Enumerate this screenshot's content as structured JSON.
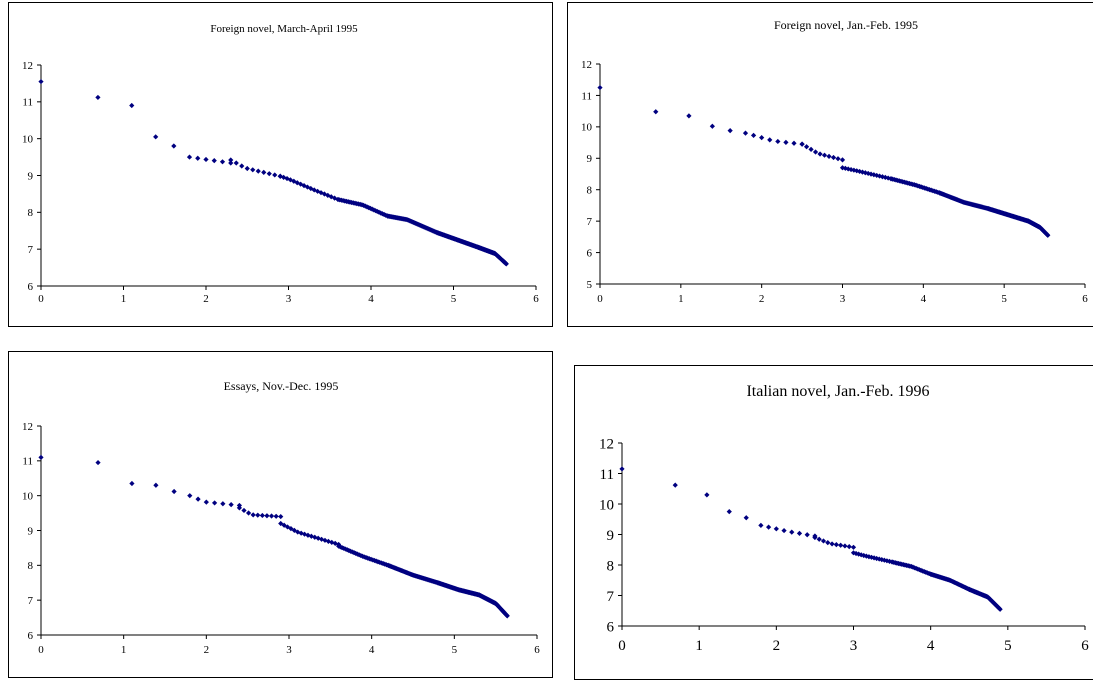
{
  "colors": {
    "marker": "#000080",
    "axis": "#000000"
  },
  "chart_data": [
    {
      "type": "scatter",
      "title": "Foreign novel, March-April 1995",
      "xlabel": "",
      "ylabel": "",
      "xlim": [
        0,
        6
      ],
      "ylim": [
        6,
        12
      ],
      "x_ticks": [
        "0",
        "1",
        "2",
        "3",
        "4",
        "5",
        "6"
      ],
      "y_ticks": [
        "6",
        "7",
        "8",
        "9",
        "10",
        "11",
        "12"
      ],
      "grid": false,
      "series": [
        {
          "values": [
            {
              "x": 0,
              "y": 11.55
            },
            {
              "x": 0.69,
              "y": 11.12
            },
            {
              "x": 1.1,
              "y": 10.9
            },
            {
              "x": 1.39,
              "y": 10.05
            },
            {
              "x": 1.61,
              "y": 9.8
            },
            {
              "xmin": 1.8,
              "xmax": 2.3,
              "points": 6,
              "knots": [
                [
                  0,
                  9.5
                ],
                [
                  0.5,
                  9.42
                ]
              ]
            },
            {
              "xmin": 2.3,
              "xmax": 2.9,
              "points": 10,
              "knots": [
                [
                  0,
                  9.42
                ],
                [
                  0.3,
                  9.2
                ],
                [
                  1,
                  8.98
                ]
              ]
            },
            {
              "xmin": 2.9,
              "xmax": 3.6,
              "points": 18,
              "knots": [
                [
                  0,
                  8.98
                ],
                [
                  0.15,
                  8.9
                ],
                [
                  0.6,
                  8.6
                ],
                [
                  1,
                  8.35
                ]
              ]
            },
            {
              "xmin": 3.6,
              "xmax": 4.2,
              "points": 30,
              "knots": [
                [
                  0,
                  8.35
                ],
                [
                  0.5,
                  8.2
                ],
                [
                  0.75,
                  8.05
                ],
                [
                  1,
                  7.9
                ]
              ]
            },
            {
              "xmin": 4.2,
              "xmax": 4.8,
              "points": 50,
              "knots": [
                [
                  0,
                  7.9
                ],
                [
                  0.4,
                  7.8
                ],
                [
                  1,
                  7.45
                ]
              ]
            },
            {
              "xmin": 4.8,
              "xmax": 5.3,
              "points": 70,
              "knots": [
                [
                  0,
                  7.45
                ],
                [
                  0.5,
                  7.25
                ],
                [
                  1,
                  7.05
                ]
              ]
            },
            {
              "xmin": 5.3,
              "xmax": 5.64,
              "points": 70,
              "knots": [
                [
                  0,
                  7.05
                ],
                [
                  0.6,
                  6.88
                ],
                [
                  1,
                  6.6
                ]
              ]
            }
          ]
        }
      ]
    },
    {
      "type": "scatter",
      "title": "Foreign novel, Jan.-Feb. 1995",
      "xlabel": "",
      "ylabel": "",
      "xlim": [
        0,
        6
      ],
      "ylim": [
        5,
        12
      ],
      "x_ticks": [
        "0",
        "1",
        "2",
        "3",
        "4",
        "5",
        "6"
      ],
      "y_ticks": [
        "5",
        "6",
        "7",
        "8",
        "9",
        "10",
        "11",
        "12"
      ],
      "grid": false,
      "series": [
        {
          "values": [
            {
              "x": 0,
              "y": 11.25
            },
            {
              "x": 0.69,
              "y": 10.48
            },
            {
              "x": 1.1,
              "y": 10.35
            },
            {
              "x": 1.39,
              "y": 10.02
            },
            {
              "x": 1.61,
              "y": 9.88
            },
            {
              "xmin": 1.8,
              "xmax": 2.5,
              "points": 8,
              "knots": [
                [
                  0,
                  9.8
                ],
                [
                  0.5,
                  9.55
                ],
                [
                  1,
                  9.45
                ]
              ]
            },
            {
              "xmin": 2.5,
              "xmax": 3.0,
              "points": 10,
              "knots": [
                [
                  0,
                  9.45
                ],
                [
                  0.4,
                  9.15
                ],
                [
                  1,
                  8.95
                ]
              ]
            },
            {
              "xmin": 3.0,
              "xmax": 3.6,
              "points": 18,
              "knots": [
                [
                  0,
                  8.7
                ],
                [
                  0.3,
                  8.6
                ],
                [
                  1,
                  8.35
                ]
              ]
            },
            {
              "xmin": 3.6,
              "xmax": 4.2,
              "points": 30,
              "knots": [
                [
                  0,
                  8.35
                ],
                [
                  0.5,
                  8.15
                ],
                [
                  1,
                  7.9
                ]
              ]
            },
            {
              "xmin": 4.2,
              "xmax": 4.8,
              "points": 50,
              "knots": [
                [
                  0,
                  7.9
                ],
                [
                  0.5,
                  7.6
                ],
                [
                  1,
                  7.4
                ]
              ]
            },
            {
              "xmin": 4.8,
              "xmax": 5.3,
              "points": 70,
              "knots": [
                [
                  0,
                  7.4
                ],
                [
                  0.5,
                  7.2
                ],
                [
                  1,
                  7.0
                ]
              ]
            },
            {
              "xmin": 5.3,
              "xmax": 5.54,
              "points": 60,
              "knots": [
                [
                  0,
                  7.0
                ],
                [
                  0.6,
                  6.8
                ],
                [
                  1,
                  6.55
                ]
              ]
            }
          ]
        }
      ]
    },
    {
      "type": "scatter",
      "title": "Essays, Nov.-Dec. 1995",
      "xlabel": "",
      "ylabel": "",
      "xlim": [
        0,
        6
      ],
      "ylim": [
        6,
        12
      ],
      "x_ticks": [
        "0",
        "1",
        "2",
        "3",
        "4",
        "5",
        "6"
      ],
      "y_ticks": [
        "6",
        "7",
        "8",
        "9",
        "10",
        "11",
        "12"
      ],
      "grid": false,
      "series": [
        {
          "values": [
            {
              "x": 0,
              "y": 11.1
            },
            {
              "x": 0.69,
              "y": 10.95
            },
            {
              "x": 1.1,
              "y": 10.35
            },
            {
              "x": 1.39,
              "y": 10.3
            },
            {
              "x": 1.61,
              "y": 10.12
            },
            {
              "xmin": 1.8,
              "xmax": 2.4,
              "points": 7,
              "knots": [
                [
                  0,
                  10.0
                ],
                [
                  0.3,
                  9.82
                ],
                [
                  1,
                  9.72
                ]
              ]
            },
            {
              "xmin": 2.4,
              "xmax": 2.9,
              "points": 10,
              "knots": [
                [
                  0,
                  9.65
                ],
                [
                  0.3,
                  9.45
                ],
                [
                  1,
                  9.4
                ]
              ]
            },
            {
              "xmin": 2.9,
              "xmax": 3.6,
              "points": 18,
              "knots": [
                [
                  0,
                  9.2
                ],
                [
                  0.3,
                  8.95
                ],
                [
                  1,
                  8.6
                ]
              ]
            },
            {
              "xmin": 3.6,
              "xmax": 4.2,
              "points": 30,
              "knots": [
                [
                  0,
                  8.55
                ],
                [
                  0.5,
                  8.25
                ],
                [
                  1,
                  8.0
                ]
              ]
            },
            {
              "xmin": 4.2,
              "xmax": 4.8,
              "points": 50,
              "knots": [
                [
                  0,
                  8.0
                ],
                [
                  0.5,
                  7.72
                ],
                [
                  1,
                  7.5
                ]
              ]
            },
            {
              "xmin": 4.8,
              "xmax": 5.3,
              "points": 70,
              "knots": [
                [
                  0,
                  7.5
                ],
                [
                  0.5,
                  7.3
                ],
                [
                  1,
                  7.15
                ]
              ]
            },
            {
              "xmin": 5.3,
              "xmax": 5.64,
              "points": 70,
              "knots": [
                [
                  0,
                  7.15
                ],
                [
                  0.6,
                  6.9
                ],
                [
                  1,
                  6.55
                ]
              ]
            }
          ]
        }
      ]
    },
    {
      "type": "scatter",
      "title": "Italian novel, Jan.-Feb. 1996",
      "xlabel": "",
      "ylabel": "",
      "xlim": [
        0,
        6
      ],
      "ylim": [
        6,
        12
      ],
      "x_ticks": [
        "0",
        "1",
        "2",
        "3",
        "4",
        "5",
        "6"
      ],
      "y_ticks": [
        "6",
        "7",
        "8",
        "9",
        "10",
        "11",
        "12"
      ],
      "grid": false,
      "series": [
        {
          "values": [
            {
              "x": 0,
              "y": 11.15
            },
            {
              "x": 0.69,
              "y": 10.62
            },
            {
              "x": 1.1,
              "y": 10.3
            },
            {
              "x": 1.39,
              "y": 9.75
            },
            {
              "x": 1.61,
              "y": 9.55
            },
            {
              "xmin": 1.8,
              "xmax": 2.5,
              "points": 8,
              "knots": [
                [
                  0,
                  9.3
                ],
                [
                  0.5,
                  9.1
                ],
                [
                  1,
                  8.95
                ]
              ]
            },
            {
              "xmin": 2.5,
              "xmax": 3.0,
              "points": 10,
              "knots": [
                [
                  0,
                  8.9
                ],
                [
                  0.4,
                  8.7
                ],
                [
                  1,
                  8.58
                ]
              ]
            },
            {
              "xmin": 3.0,
              "xmax": 3.5,
              "points": 16,
              "knots": [
                [
                  0,
                  8.4
                ],
                [
                  0.3,
                  8.3
                ],
                [
                  1,
                  8.1
                ]
              ]
            },
            {
              "xmin": 3.5,
              "xmax": 4.0,
              "points": 25,
              "knots": [
                [
                  0,
                  8.1
                ],
                [
                  0.5,
                  7.95
                ],
                [
                  1,
                  7.7
                ]
              ]
            },
            {
              "xmin": 4.0,
              "xmax": 4.5,
              "points": 40,
              "knots": [
                [
                  0,
                  7.7
                ],
                [
                  0.5,
                  7.5
                ],
                [
                  1,
                  7.2
                ]
              ]
            },
            {
              "xmin": 4.5,
              "xmax": 4.9,
              "points": 50,
              "knots": [
                [
                  0,
                  7.2
                ],
                [
                  0.6,
                  6.95
                ],
                [
                  1,
                  6.55
                ]
              ]
            }
          ]
        }
      ]
    }
  ]
}
